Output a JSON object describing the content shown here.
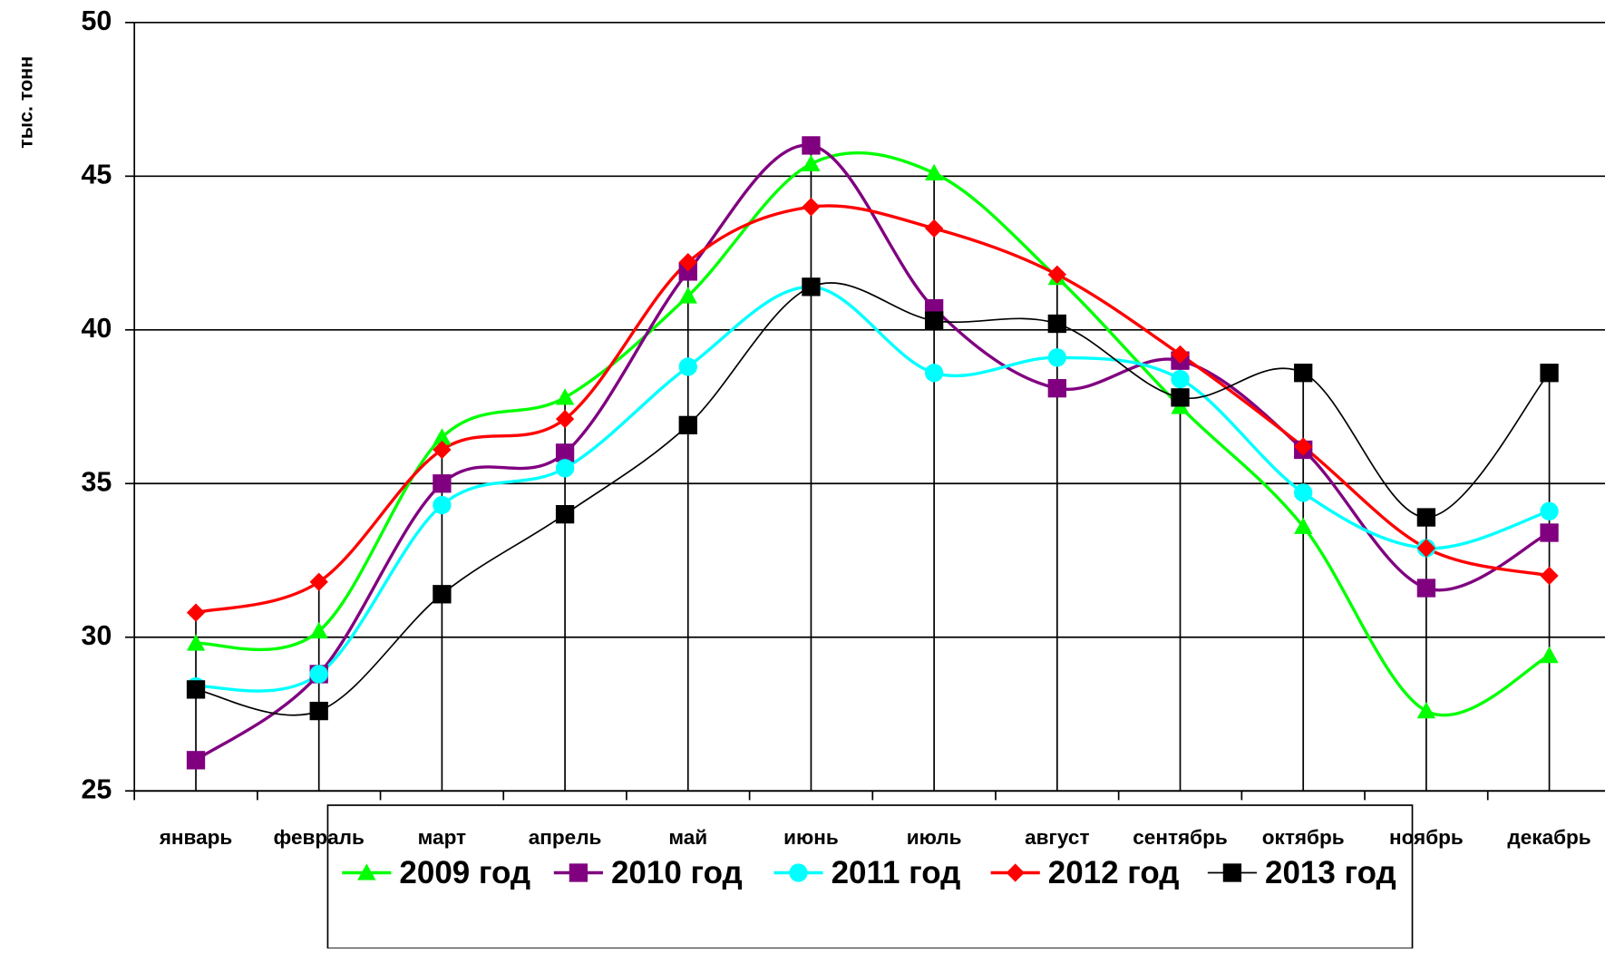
{
  "chart_data": {
    "type": "line",
    "y_label": "тыс. тонн",
    "categories": [
      "январь",
      "февраль",
      "март",
      "апрель",
      "май",
      "июнь",
      "июль",
      "август",
      "сентябрь",
      "октябрь",
      "ноябрь",
      "декабрь"
    ],
    "series": [
      {
        "name": "2009 год",
        "color": "#00ff00",
        "marker": "triangle",
        "values": [
          29.8,
          30.2,
          36.5,
          37.8,
          41.1,
          45.4,
          45.1,
          41.7,
          37.5,
          33.6,
          27.6,
          29.4
        ]
      },
      {
        "name": "2010 год",
        "color": "#800080",
        "marker": "square",
        "values": [
          26.0,
          28.8,
          35.0,
          36.0,
          41.9,
          46.0,
          40.7,
          38.1,
          39.0,
          36.1,
          31.6,
          33.4
        ]
      },
      {
        "name": "2011 год",
        "color": "#00ffff",
        "marker": "circle",
        "values": [
          28.4,
          28.8,
          34.3,
          35.5,
          38.8,
          41.4,
          38.6,
          39.1,
          38.4,
          34.7,
          32.9,
          34.1
        ]
      },
      {
        "name": "2012 год",
        "color": "#ff0000",
        "marker": "diamond",
        "values": [
          30.8,
          31.8,
          36.1,
          37.1,
          42.2,
          44.0,
          43.3,
          41.8,
          39.2,
          36.2,
          32.9,
          32.0
        ]
      },
      {
        "name": "2013 год",
        "color": "#000000",
        "marker": "square",
        "values": [
          28.3,
          27.6,
          31.4,
          34.0,
          36.9,
          41.4,
          40.3,
          40.2,
          37.8,
          38.6,
          33.9,
          38.6
        ]
      }
    ],
    "ylim": [
      25,
      50
    ],
    "yticks": [
      25,
      30,
      35,
      40,
      45,
      50
    ],
    "grid": true,
    "smooth": true,
    "drop_lines": true,
    "legend": "bottom"
  }
}
